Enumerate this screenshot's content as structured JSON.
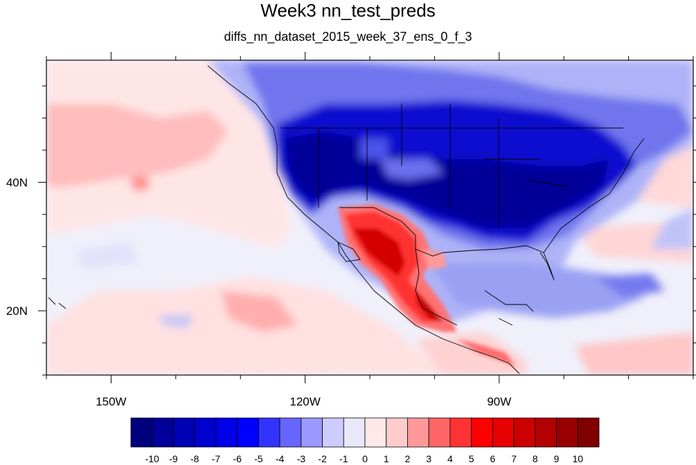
{
  "title": "Week3 nn_test_preds",
  "subtitle": "diffs_nn_dataset_2015_week_37_ens_0_f_3",
  "map": {
    "projection": "cylindrical-equidistant",
    "lon_range": [
      -160,
      -60
    ],
    "lat_range": [
      10,
      59
    ],
    "lon_ticks": [
      {
        "value": -150,
        "label": "150W"
      },
      {
        "value": -120,
        "label": "120W"
      },
      {
        "value": -90,
        "label": "90W"
      }
    ],
    "lat_ticks": [
      {
        "value": 40,
        "label": "40N"
      },
      {
        "value": 20,
        "label": "20N"
      }
    ]
  },
  "colorbar": {
    "levels": [
      "-10",
      "-9",
      "-8",
      "-7",
      "-6",
      "-5",
      "-4",
      "-3",
      "-2",
      "-1",
      "0",
      "1",
      "2",
      "3",
      "4",
      "5",
      "6",
      "7",
      "8",
      "9",
      "10"
    ],
    "colors": [
      "#00007f",
      "#00009a",
      "#0000b4",
      "#0000cf",
      "#0000e9",
      "#0000ff",
      "#3333ff",
      "#6666ff",
      "#9999ff",
      "#ccccff",
      "#e8e8fa",
      "#ffe8e8",
      "#ffcccc",
      "#ff9999",
      "#ff6666",
      "#ff3333",
      "#ff0000",
      "#e60000",
      "#cc0000",
      "#b30000",
      "#990000",
      "#800000"
    ]
  }
}
